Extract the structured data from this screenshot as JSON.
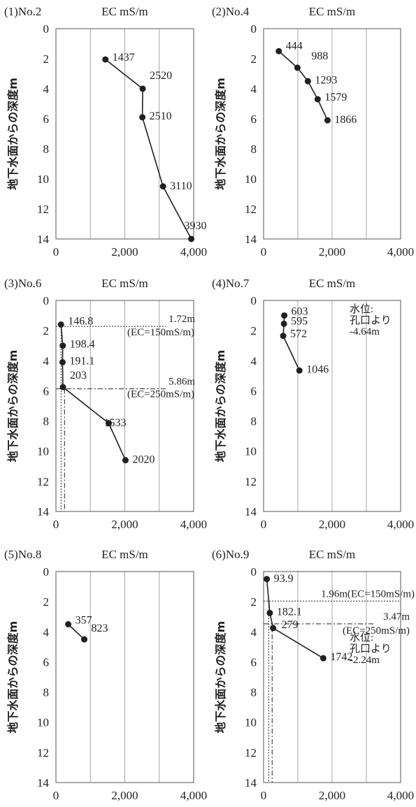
{
  "chart_data": [
    {
      "type": "line",
      "panel_label": "(1)No.2",
      "title": "EC mS/m",
      "ylabel": "地下水面からの深度m",
      "xlim": [
        0,
        4000
      ],
      "ylim": [
        0,
        14
      ],
      "y_inverted": true,
      "xticks": [
        0,
        2000,
        4000
      ],
      "xtick_labels": [
        "0",
        "2,000",
        "4,000"
      ],
      "yticks": [
        0,
        2,
        4,
        6,
        8,
        10,
        12,
        14
      ],
      "x_grid": [
        1000,
        2000,
        3000
      ],
      "series": [
        {
          "x": [
            1437,
            2520,
            2510,
            3110,
            3930
          ],
          "y": [
            2.05,
            4.0,
            5.9,
            10.5,
            14.0
          ],
          "labels": [
            "1437",
            "2520",
            "2510",
            "3110",
            "3930"
          ]
        }
      ],
      "annotations": []
    },
    {
      "type": "line",
      "panel_label": "(2)No.4",
      "title": "EC mS/m",
      "ylabel": "地下水面からの深度m",
      "xlim": [
        0,
        4000
      ],
      "ylim": [
        0,
        14
      ],
      "y_inverted": true,
      "xticks": [
        0,
        2000,
        4000
      ],
      "xtick_labels": [
        "0",
        "2,000",
        "4,000"
      ],
      "yticks": [
        0,
        2,
        4,
        6,
        8,
        10,
        12,
        14
      ],
      "x_grid": [
        1000,
        2000,
        3000
      ],
      "series": [
        {
          "x": [
            444,
            988,
            1293,
            1579,
            1866
          ],
          "y": [
            1.5,
            2.6,
            3.5,
            4.7,
            6.1
          ],
          "labels": [
            "444",
            "988",
            "1293",
            "1579",
            "1866"
          ]
        }
      ],
      "annotations": []
    },
    {
      "type": "line",
      "panel_label": "(3)No.6",
      "title": "EC mS/m",
      "ylabel": "地下水面からの深度m",
      "xlim": [
        0,
        4000
      ],
      "ylim": [
        0,
        14
      ],
      "y_inverted": true,
      "xticks": [
        0,
        2000,
        4000
      ],
      "xtick_labels": [
        "0",
        "2,000",
        "4,000"
      ],
      "yticks": [
        0,
        2,
        4,
        6,
        8,
        10,
        12,
        14
      ],
      "x_grid": [
        1000,
        2000,
        3000
      ],
      "series": [
        {
          "x": [
            146.8,
            198.4,
            191.1,
            203,
            1533,
            2020
          ],
          "y": [
            1.6,
            3.0,
            4.1,
            5.75,
            8.15,
            10.6
          ],
          "labels": [
            "146.8",
            "198.4",
            "191.1",
            "203",
            "1533",
            "2020"
          ]
        }
      ],
      "reference_lines": [
        {
          "kind": "hline",
          "value": 1.72,
          "style": "dotted",
          "x_to": 3200,
          "label": "1.72m",
          "sublabel": "(EC=150mS/m)"
        },
        {
          "kind": "hline",
          "value": 5.86,
          "style": "dashdot",
          "x_to": 3200,
          "label": "5.86m",
          "sublabel": "(EC=250mS/m)"
        },
        {
          "kind": "vline",
          "value": 150,
          "style": "dotted",
          "y_from": 1.72
        },
        {
          "kind": "vline",
          "value": 250,
          "style": "dashdot",
          "y_from": 5.86
        }
      ],
      "annotations": []
    },
    {
      "type": "line",
      "panel_label": "(4)No.7",
      "title": "EC mS/m",
      "ylabel": "地下水面からの深度m",
      "xlim": [
        0,
        4000
      ],
      "ylim": [
        0,
        14
      ],
      "y_inverted": true,
      "xticks": [
        0,
        2000,
        4000
      ],
      "xtick_labels": [
        "0",
        "2,000",
        "4,000"
      ],
      "yticks": [
        0,
        2,
        4,
        6,
        8,
        10,
        12,
        14
      ],
      "x_grid": [
        1000,
        2000,
        3000
      ],
      "series": [
        {
          "x": [
            603,
            595,
            572,
            1046
          ],
          "y": [
            1.0,
            1.55,
            2.35,
            4.65
          ],
          "labels": [
            "603",
            "595",
            "572",
            "1046"
          ]
        }
      ],
      "annotations": [
        {
          "lines": [
            "水位:",
            "孔口より",
            "-4.64m"
          ]
        }
      ]
    },
    {
      "type": "line",
      "panel_label": "(5)No.8",
      "title": "EC mS/m",
      "ylabel": "地下水面からの深度m",
      "xlim": [
        0,
        4000
      ],
      "ylim": [
        0,
        14
      ],
      "y_inverted": true,
      "xticks": [
        0,
        2000,
        4000
      ],
      "xtick_labels": [
        "0",
        "2,000",
        "4,000"
      ],
      "yticks": [
        0,
        2,
        4,
        6,
        8,
        10,
        12,
        14
      ],
      "x_grid": [
        1000,
        2000,
        3000
      ],
      "series": [
        {
          "x": [
            357,
            823
          ],
          "y": [
            3.5,
            4.5
          ],
          "labels": [
            "357",
            "823"
          ]
        }
      ],
      "annotations": []
    },
    {
      "type": "line",
      "panel_label": "(6)No.9",
      "title": "EC mS/m",
      "ylabel": "地下水面からの深度m",
      "xlim": [
        0,
        4000
      ],
      "ylim": [
        0,
        14
      ],
      "y_inverted": true,
      "xticks": [
        0,
        2000,
        4000
      ],
      "xtick_labels": [
        "0",
        "2,000",
        "4,000"
      ],
      "yticks": [
        0,
        2,
        4,
        6,
        8,
        10,
        12,
        14
      ],
      "x_grid": [
        1000,
        2000,
        3000
      ],
      "series": [
        {
          "x": [
            93.9,
            182.1,
            279,
            1742
          ],
          "y": [
            0.5,
            2.75,
            3.75,
            5.75
          ],
          "labels": [
            "93.9",
            "182.1",
            "279",
            "1742"
          ]
        }
      ],
      "reference_lines": [
        {
          "kind": "hline",
          "value": 1.96,
          "style": "dotted",
          "x_to": 4000,
          "label": "1.96m(EC=150mS/m)",
          "sublabel": ""
        },
        {
          "kind": "hline",
          "value": 3.47,
          "style": "dashdot",
          "x_to": 3200,
          "label": "3.47m",
          "sublabel": "(EC=250mS/m)"
        },
        {
          "kind": "vline",
          "value": 150,
          "style": "dotted",
          "y_from": 1.96
        },
        {
          "kind": "vline",
          "value": 250,
          "style": "dashdot",
          "y_from": 3.47
        }
      ],
      "annotations": [
        {
          "lines": [
            "水位:",
            "孔口より",
            "-2.24m"
          ]
        }
      ]
    }
  ]
}
